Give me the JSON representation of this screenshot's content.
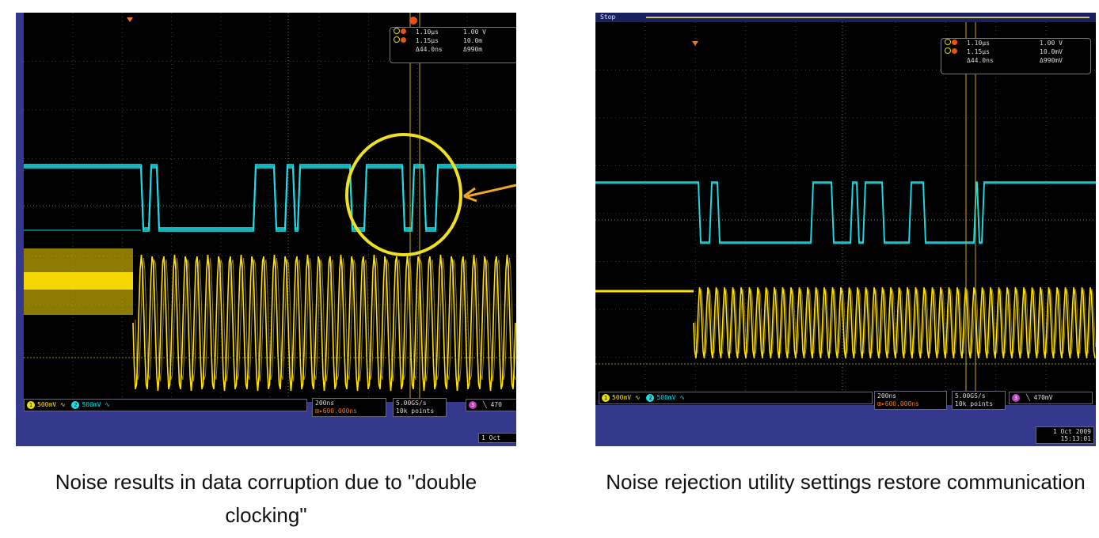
{
  "left_scope": {
    "cursor_readout": {
      "row1": {
        "time": "1.10µs",
        "value": "1.00 V"
      },
      "row2": {
        "time": "1.15µs",
        "value": "10.0m"
      },
      "delta": {
        "time": "Δ44.0ns",
        "value": "Δ990m"
      }
    },
    "ch1_scale": "500mV",
    "ch2_scale": "500mV",
    "timebase": "200ns",
    "trigger_pos": "⊞▸600.000ns",
    "sample_rate": "5.00GS/s",
    "record_length": "10k points",
    "trigger_level": "470",
    "date": "1 Oct"
  },
  "right_scope": {
    "run_state": "Stop",
    "cursor_readout": {
      "row1": {
        "time": "1.10µs",
        "value": "1.00 V"
      },
      "row2": {
        "time": "1.15µs",
        "value": "10.0mV"
      },
      "delta": {
        "time": "Δ44.0ns",
        "value": "Δ990mV"
      }
    },
    "ch1_scale": "500mV",
    "ch2_scale": "500mV",
    "timebase": "200ns",
    "trigger_pos": "⊞▸600.000ns",
    "sample_rate": "5.00GS/s",
    "record_length": "10k points",
    "trigger_level": "470mV",
    "date": "1 Oct  2009",
    "time": "15:13:01"
  },
  "captions": {
    "left": "Noise results in data corruption due to \"double clocking\"",
    "right": "Noise rejection utility settings restore communication"
  },
  "colors": {
    "ch1": "#ffe000",
    "ch2": "#18e0e8",
    "highlight": "#f0e020",
    "frame": "#34398e"
  }
}
